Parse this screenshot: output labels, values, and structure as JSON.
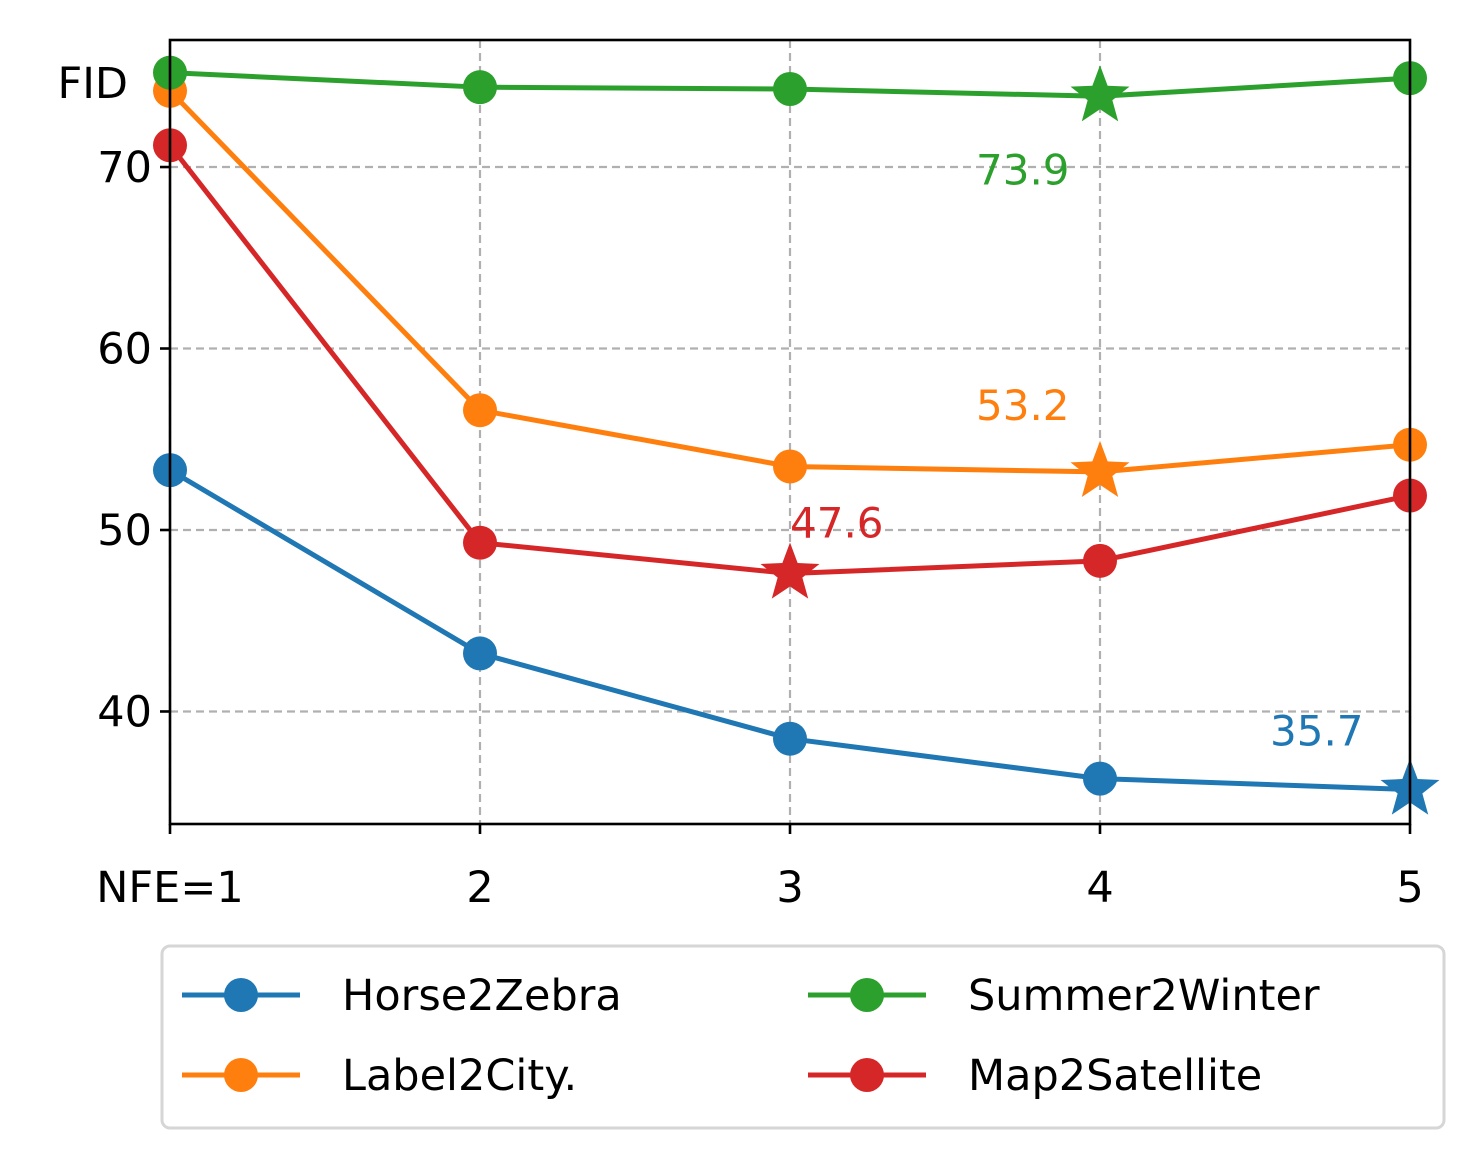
{
  "chart_data": {
    "type": "line",
    "title": "",
    "xlabel": "",
    "ylabel": "FID",
    "x": [
      1,
      2,
      3,
      4,
      5
    ],
    "x_tick_labels": [
      "NFE=1",
      "2",
      "3",
      "4",
      "5"
    ],
    "y_ticks": [
      40,
      50,
      60,
      70
    ],
    "y_tick_labels": [
      "40",
      "50",
      "60",
      "70"
    ],
    "ylim": [
      33.8,
      77.0
    ],
    "xlim": [
      1,
      5
    ],
    "grid": true,
    "legend_position": "bottom",
    "series": [
      {
        "name": "Horse2Zebra",
        "color": "#1f77b4",
        "values": [
          53.3,
          43.2,
          38.5,
          36.3,
          35.7
        ],
        "best_index": 4,
        "best_label": "35.7"
      },
      {
        "name": "Label2City.",
        "color": "#ff7f0e",
        "values": [
          74.2,
          56.6,
          53.5,
          53.2,
          54.7
        ],
        "best_index": 3,
        "best_label": "53.2"
      },
      {
        "name": "Summer2Winter",
        "color": "#2ca02c",
        "values": [
          75.2,
          74.4,
          74.3,
          73.9,
          74.9
        ],
        "best_index": 3,
        "best_label": "73.9"
      },
      {
        "name": "Map2Satellite",
        "color": "#d62728",
        "values": [
          71.2,
          49.3,
          47.6,
          48.3,
          51.9
        ],
        "best_index": 2,
        "best_label": "47.6"
      }
    ],
    "legend_order": [
      0,
      2,
      1,
      3
    ]
  }
}
